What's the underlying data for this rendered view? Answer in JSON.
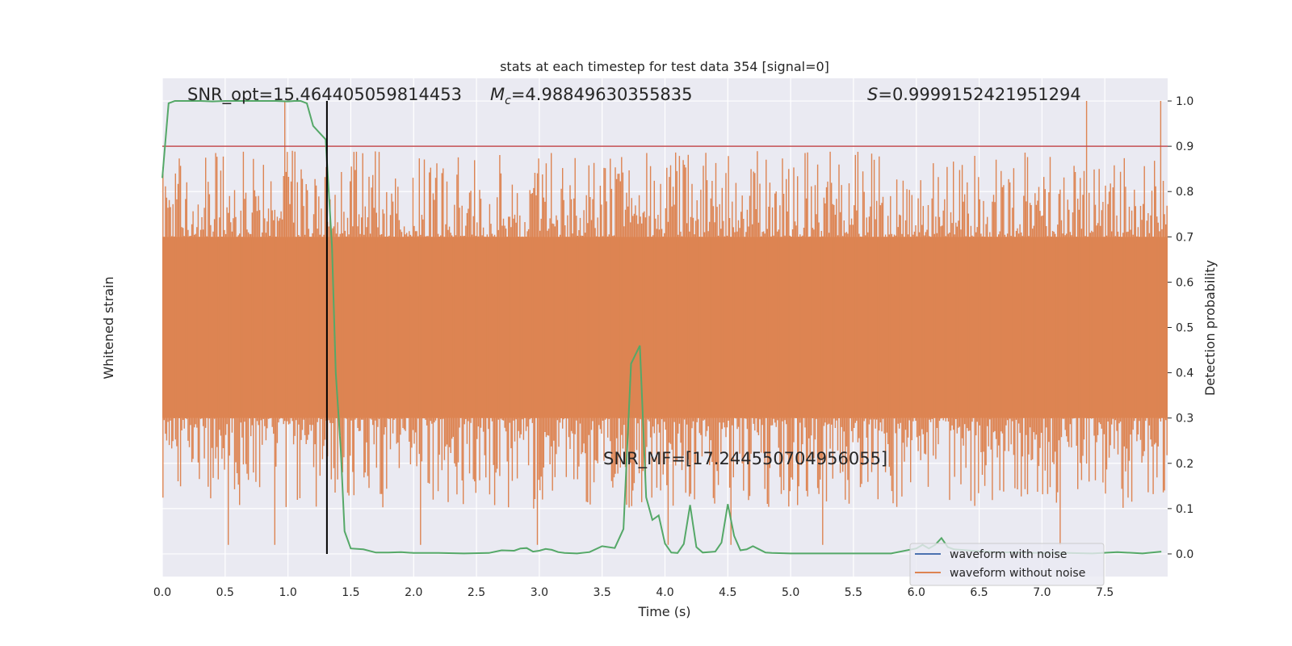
{
  "chart_data": {
    "type": "line",
    "title": "stats at each timestep for test data 354 [signal=0]",
    "xlabel": "Time (s)",
    "ylabel_left": "Whitened strain",
    "ylabel_right": "Detection probability",
    "xlim": [
      0.0,
      8.0
    ],
    "ylim_right": [
      -0.05,
      1.05
    ],
    "x_ticks": [
      "0.0",
      "0.5",
      "1.0",
      "1.5",
      "2.0",
      "2.5",
      "3.0",
      "3.5",
      "4.0",
      "4.5",
      "5.0",
      "5.5",
      "6.0",
      "6.5",
      "7.0",
      "7.5"
    ],
    "y_ticks_right": [
      "0.0",
      "0.1",
      "0.2",
      "0.3",
      "0.4",
      "0.5",
      "0.6",
      "0.7",
      "0.8",
      "0.9",
      "1.0"
    ],
    "grid": true,
    "annotations": {
      "snr_opt": "SNR_opt=15.464405059814453",
      "mc_symbol": "M",
      "mc_sub": "c",
      "mc_value": "=4.98849630355835",
      "s_symbol": "S",
      "s_value": "=0.9999152421951294",
      "snr_mf": "SNR_MF=[17.244550704956055]"
    },
    "threshold": 0.9,
    "marker_time": 1.31,
    "legend": {
      "placement": "lower-right",
      "entries": [
        "waveform with noise",
        "waveform without noise"
      ]
    },
    "colors": {
      "noise_waveform": "#4c72b0",
      "clean_waveform": "#dd8452",
      "probability": "#55a868",
      "threshold": "#c44e52",
      "marker": "#000000",
      "background": "#eaeaf2"
    },
    "series": [
      {
        "name": "Detection probability",
        "x": [
          0.0,
          0.05,
          0.1,
          0.2,
          0.3,
          0.4,
          0.5,
          0.6,
          0.7,
          0.8,
          0.9,
          1.0,
          1.05,
          1.1,
          1.15,
          1.2,
          1.25,
          1.3,
          1.35,
          1.38,
          1.42,
          1.45,
          1.5,
          1.6,
          1.7,
          1.8,
          1.9,
          2.0,
          2.2,
          2.4,
          2.6,
          2.7,
          2.8,
          2.85,
          2.9,
          2.95,
          3.0,
          3.05,
          3.1,
          3.15,
          3.2,
          3.3,
          3.4,
          3.5,
          3.6,
          3.67,
          3.73,
          3.8,
          3.85,
          3.9,
          3.95,
          4.0,
          4.05,
          4.1,
          4.15,
          4.2,
          4.25,
          4.3,
          4.4,
          4.45,
          4.5,
          4.55,
          4.6,
          4.65,
          4.7,
          4.75,
          4.8,
          4.85,
          5.0,
          5.2,
          5.5,
          5.8,
          6.0,
          6.05,
          6.1,
          6.15,
          6.2,
          6.25,
          6.3,
          6.4,
          6.6,
          6.8,
          7.0,
          7.2,
          7.4,
          7.6,
          7.8,
          7.95
        ],
        "values": [
          0.83,
          0.995,
          1.0,
          1.0,
          1.0,
          0.999,
          1.0,
          1.0,
          1.0,
          1.0,
          1.0,
          0.999,
          1.0,
          1.0,
          0.995,
          0.945,
          0.93,
          0.915,
          0.68,
          0.4,
          0.23,
          0.05,
          0.012,
          0.01,
          0.003,
          0.003,
          0.004,
          0.002,
          0.002,
          0.001,
          0.002,
          0.008,
          0.007,
          0.012,
          0.013,
          0.005,
          0.007,
          0.011,
          0.009,
          0.004,
          0.002,
          0.001,
          0.004,
          0.017,
          0.013,
          0.055,
          0.42,
          0.46,
          0.125,
          0.075,
          0.085,
          0.023,
          0.003,
          0.002,
          0.022,
          0.108,
          0.015,
          0.003,
          0.005,
          0.025,
          0.11,
          0.04,
          0.008,
          0.01,
          0.017,
          0.01,
          0.003,
          0.002,
          0.001,
          0.001,
          0.001,
          0.001,
          0.012,
          0.02,
          0.012,
          0.02,
          0.035,
          0.015,
          0.01,
          0.008,
          0.004,
          0.003,
          0.002,
          0.002,
          0.001,
          0.004,
          0.001,
          0.005
        ]
      },
      {
        "name": "waveform without noise",
        "sample_count": 800,
        "band_low": 0.3,
        "band_high": 0.7,
        "spike_max": 1.0,
        "spike_min": 0.0
      }
    ]
  }
}
